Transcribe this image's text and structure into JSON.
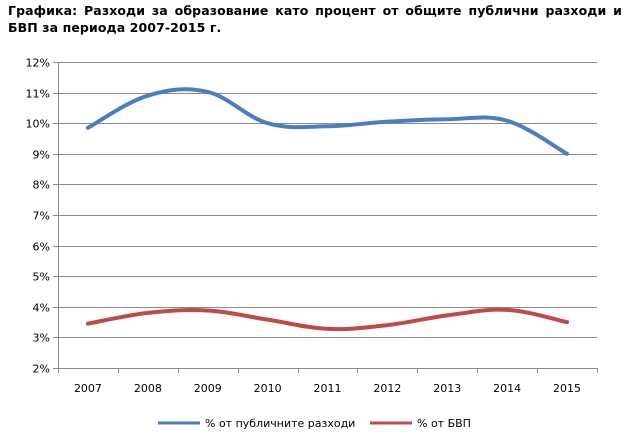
{
  "title": "Графика: Разходи за образование като процент от общите публични разходи и БВП за периода 2007-2015 г.",
  "chart_data": {
    "type": "line",
    "title": "Графика: Разходи за образование като процент от общите публични разходи и БВП за периода 2007-2015 г.",
    "categories": [
      "2007",
      "2008",
      "2009",
      "2010",
      "2011",
      "2012",
      "2013",
      "2014",
      "2015"
    ],
    "ylim": [
      2,
      12
    ],
    "yticks": [
      "2%",
      "3%",
      "4%",
      "5%",
      "6%",
      "7%",
      "8%",
      "9%",
      "10%",
      "11%",
      "12%"
    ],
    "grid": true,
    "legend_position": "bottom",
    "series": [
      {
        "name": "% от публичните разходи",
        "color": "#4a7ebf",
        "values": [
          9.85,
          10.9,
          11.02,
          10.0,
          9.9,
          10.05,
          10.13,
          10.08,
          9.0
        ]
      },
      {
        "name": "% от БВП",
        "color": "#be4b48",
        "values": [
          3.45,
          3.8,
          3.88,
          3.58,
          3.28,
          3.4,
          3.72,
          3.9,
          3.5
        ]
      }
    ]
  }
}
